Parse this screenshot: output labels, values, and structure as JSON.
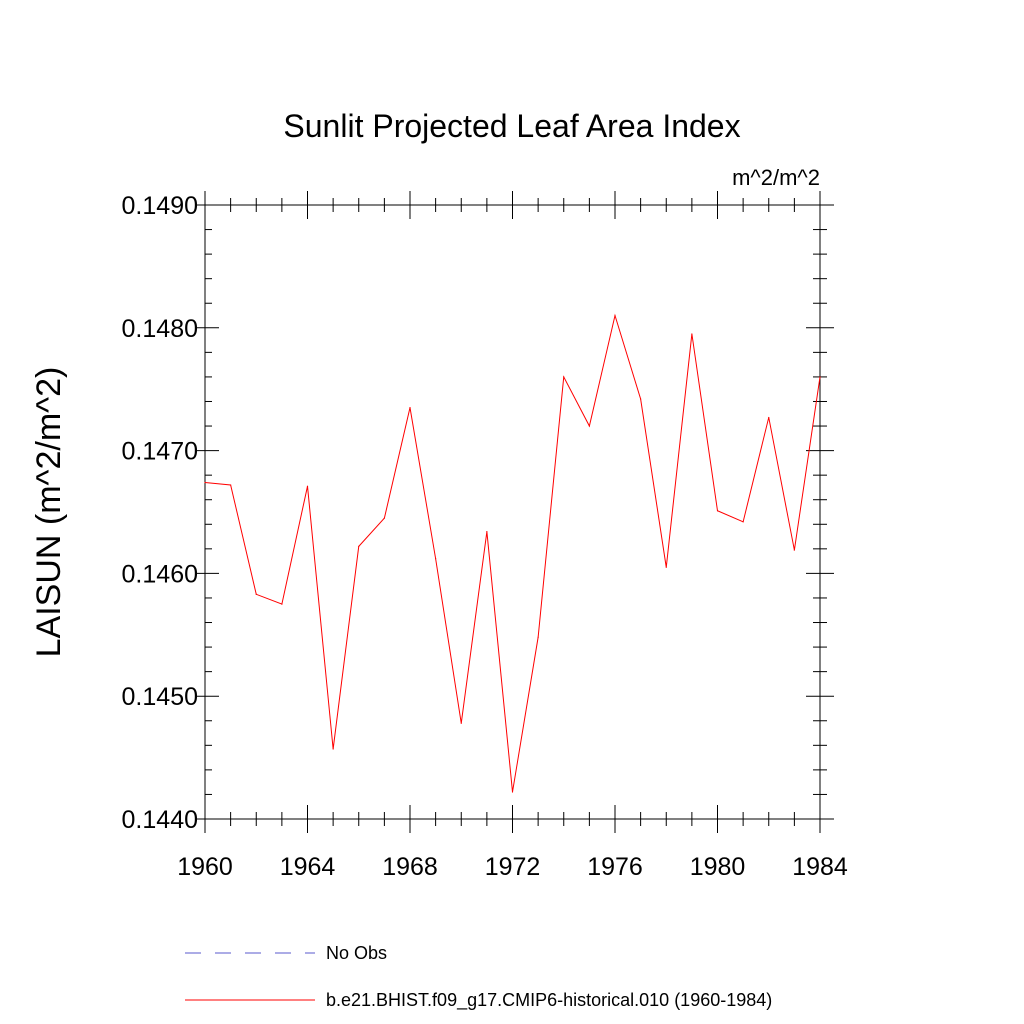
{
  "chart_data": {
    "type": "line",
    "title": "Sunlit Projected Leaf Area Index",
    "units_label": "m^2/m^2",
    "ylabel": "LAISUN  (m^2/m^2)",
    "xlabel": "",
    "xlim": [
      1960,
      1984
    ],
    "ylim": [
      0.144,
      0.149
    ],
    "x_ticks": [
      "1960",
      "1964",
      "1968",
      "1972",
      "1976",
      "1980",
      "1984"
    ],
    "y_ticks": [
      "0.1440",
      "0.1450",
      "0.1460",
      "0.1470",
      "0.1480",
      "0.1490"
    ],
    "grid": false,
    "legend_position": "bottom",
    "x": [
      1960,
      1961,
      1962,
      1963,
      1964,
      1965,
      1966,
      1967,
      1968,
      1969,
      1970,
      1971,
      1972,
      1973,
      1974,
      1975,
      1976,
      1977,
      1978,
      1979,
      1980,
      1981,
      1982,
      1983,
      1984
    ],
    "series": [
      {
        "name": "b.e21.BHIST.f09_g17.CMIP6-historical.010 (1960-1984)",
        "color": "#ff0000",
        "line_style": "solid",
        "values": [
          0.14674,
          0.14672,
          0.14583,
          0.14575,
          0.14671,
          0.14457,
          0.14622,
          0.14645,
          0.14735,
          0.14612,
          0.14478,
          0.14634,
          0.14422,
          0.14548,
          0.1476,
          0.1472,
          0.1481,
          0.14742,
          0.14605,
          0.14795,
          0.14651,
          0.14642,
          0.14727,
          0.14619,
          0.1476
        ]
      }
    ],
    "legend": [
      {
        "label": "No Obs",
        "color": "#5a5acd",
        "line_style": "dashed"
      },
      {
        "label": "b.e21.BHIST.f09_g17.CMIP6-historical.010 (1960-1984)",
        "color": "#ff0000",
        "line_style": "solid"
      }
    ]
  }
}
